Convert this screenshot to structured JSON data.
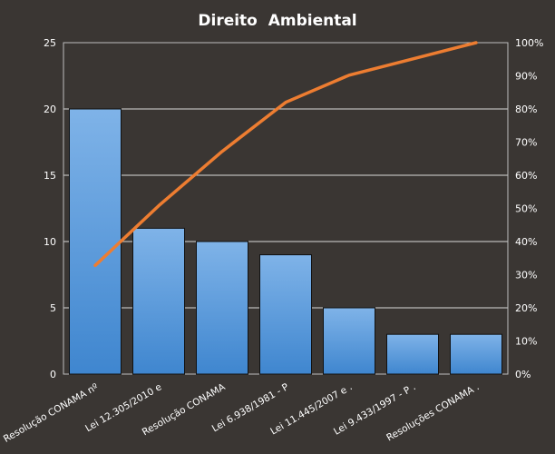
{
  "chart_data": {
    "type": "bar",
    "title": "Direito  Ambiental",
    "categories": [
      "Resolução CONAMA nº",
      "Lei 12.305/2010 e",
      "Resolução CONAMA",
      "Lei 6.938/1981 - P",
      "Lei 11.445/2007 e .",
      "Lei 9.433/1997 - P .",
      "Resoluções CONAMA ."
    ],
    "series": [
      {
        "type": "bar",
        "values": [
          20,
          11,
          10,
          9,
          5,
          3,
          3
        ],
        "color": "#5b9bd5"
      },
      {
        "type": "line",
        "axis": "secondary",
        "values": [
          32.8,
          50.8,
          67.2,
          82.0,
          90.2,
          95.1,
          100.0
        ],
        "color": "#ed7d31"
      }
    ],
    "ylim": [
      0,
      25
    ],
    "yticks": [
      "0",
      "5",
      "10",
      "15",
      "20",
      "25"
    ],
    "y2lim": [
      0,
      100
    ],
    "y2ticks": [
      "0%",
      "10%",
      "20%",
      "30%",
      "40%",
      "50%",
      "60%",
      "70%",
      "80%",
      "90%",
      "100%"
    ],
    "grid": true,
    "legend": "none",
    "colors": {
      "background": "#3a3633",
      "plot_border": "#bfbfbf",
      "gridline": "#d9d9d9",
      "text": "#ffffff"
    }
  }
}
